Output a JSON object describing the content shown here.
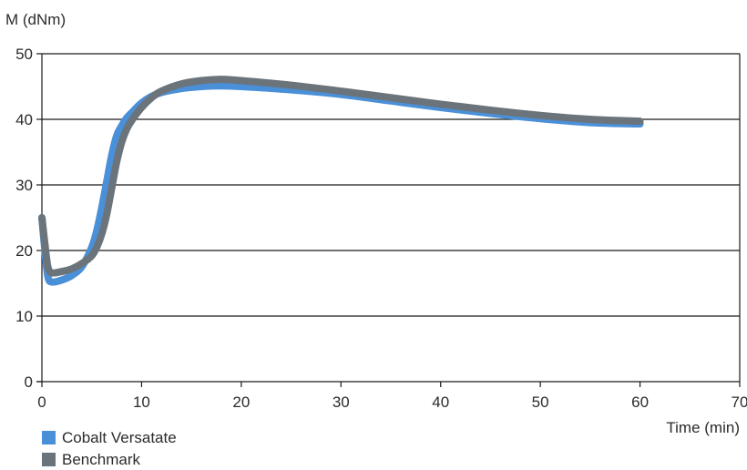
{
  "chart_data": {
    "type": "line",
    "ylabel": "M (dNm)",
    "xlabel": "Time (min)",
    "xlim": [
      0,
      70
    ],
    "ylim": [
      0,
      50
    ],
    "xticks": [
      0,
      10,
      20,
      30,
      40,
      50,
      60,
      70
    ],
    "yticks": [
      0,
      10,
      20,
      30,
      40,
      50
    ],
    "grid": "horizontal",
    "legend_position": "bottom-left",
    "series": [
      {
        "name": "Cobalt Versatate",
        "color": "#4a90d9",
        "x": [
          0,
          0.3,
          0.6,
          1,
          2,
          3,
          4,
          5,
          5.5,
          6,
          6.5,
          7,
          7.5,
          8,
          8.5,
          9,
          10,
          11,
          12,
          14,
          16,
          18,
          20,
          25,
          30,
          35,
          40,
          45,
          50,
          55,
          60
        ],
        "y": [
          25,
          20,
          16,
          15.2,
          15.5,
          16.2,
          17.5,
          20.5,
          23,
          26.5,
          30.5,
          34.5,
          37.5,
          39,
          40.2,
          41,
          42.5,
          43.5,
          44.1,
          44.7,
          45,
          45.1,
          45,
          44.5,
          43.8,
          42.8,
          41.8,
          40.9,
          40.1,
          39.5,
          39.3
        ]
      },
      {
        "name": "Benchmark",
        "color": "#6b747b",
        "x": [
          0,
          0.3,
          0.6,
          1,
          2,
          3,
          4,
          5,
          5.5,
          6,
          6.5,
          7,
          7.5,
          8,
          8.5,
          9,
          10,
          11,
          12,
          14,
          16,
          18,
          20,
          25,
          30,
          35,
          40,
          45,
          50,
          55,
          60
        ],
        "y": [
          25,
          21,
          17.5,
          16.6,
          16.8,
          17.2,
          18,
          19.2,
          20.5,
          22.5,
          25.5,
          29.5,
          33.5,
          36.5,
          38.5,
          39.8,
          41.8,
          43.3,
          44.3,
          45.4,
          45.9,
          46.1,
          45.9,
          45.2,
          44.3,
          43.3,
          42.3,
          41.4,
          40.6,
          40,
          39.7
        ]
      }
    ]
  }
}
